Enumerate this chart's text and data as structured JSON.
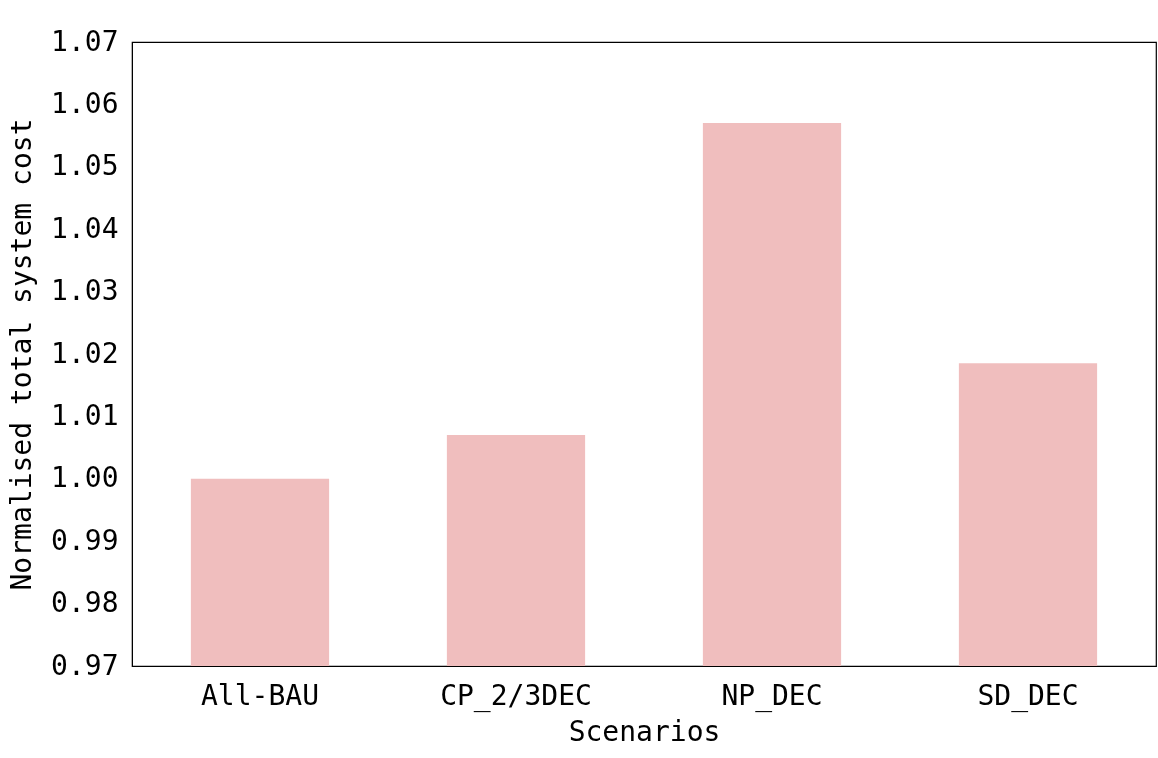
{
  "chart_data": {
    "type": "bar",
    "xlabel": "Scenarios",
    "ylabel": "Normalised total system cost",
    "categories": [
      "All-BAU",
      "CP_2/3DEC",
      "NP_DEC",
      "SD_DEC"
    ],
    "values": [
      1.0,
      1.007,
      1.057,
      1.0185
    ],
    "color": "#f0bebe",
    "ylim": [
      0.97,
      1.07
    ],
    "yticks": [
      0.97,
      0.98,
      0.99,
      {
        "value": 1,
        "label": "1.00"
      },
      1.01,
      1.02,
      1.03,
      1.04,
      1.05,
      1.06,
      1.07
    ],
    "grid": false
  }
}
